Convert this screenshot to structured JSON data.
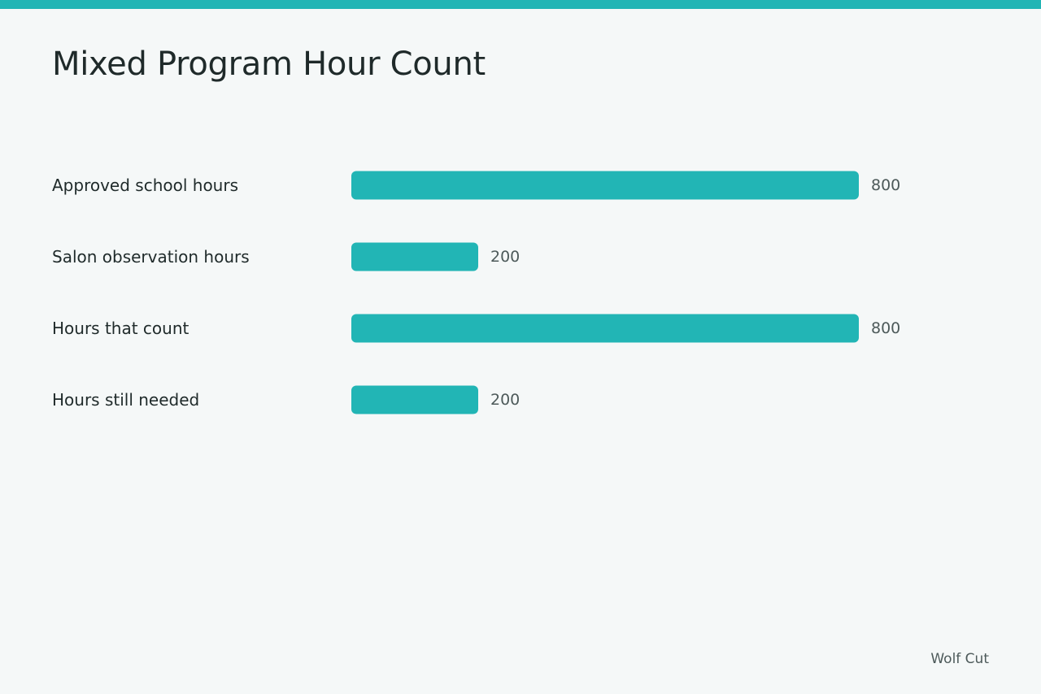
{
  "theme": {
    "accent": "#22b5b5",
    "background": "#f5f8f8",
    "text": "#1f2a2a",
    "muted_text": "#4d5a5a"
  },
  "header": {
    "title": "Mixed Program Hour Count"
  },
  "footer": {
    "brand": "Wolf Cut"
  },
  "chart_data": {
    "type": "bar",
    "orientation": "horizontal",
    "title": "Mixed Program Hour Count",
    "categories": [
      "Approved school hours",
      "Salon observation hours",
      "Hours that count",
      "Hours still needed"
    ],
    "values": [
      800,
      200,
      800,
      200
    ],
    "data_labels": [
      "800",
      "200",
      "800",
      "200"
    ],
    "xlim": [
      0,
      800
    ],
    "grid": false,
    "legend": "none",
    "bar_color": "#22b5b5"
  }
}
